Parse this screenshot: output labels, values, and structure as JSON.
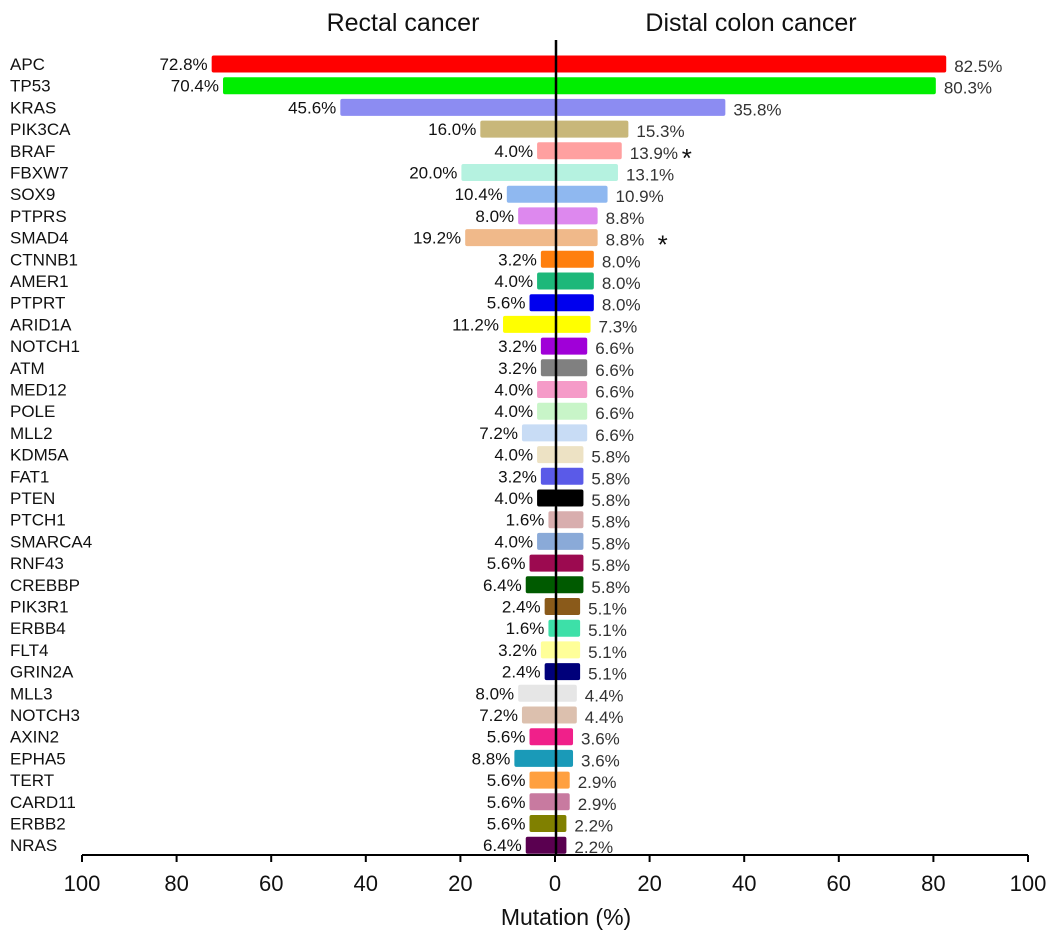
{
  "chart_data": {
    "type": "bar",
    "orientation": "horizontal-diverging",
    "left_title": "Rectal cancer",
    "right_title": "Distal colon cancer",
    "xlabel": "Mutation (%)",
    "xlim": [
      0,
      100
    ],
    "x_ticks": [
      "100",
      "80",
      "60",
      "40",
      "20",
      "0",
      "20",
      "40",
      "60",
      "80",
      "100"
    ],
    "genes": [
      {
        "name": "APC",
        "left": 72.8,
        "left_label": "72.8%",
        "right": 82.5,
        "right_label": "82.5%",
        "color": "#ff0000",
        "star": ""
      },
      {
        "name": "TP53",
        "left": 70.4,
        "left_label": "70.4%",
        "right": 80.3,
        "right_label": "80.3%",
        "color": "#00ee00",
        "star": ""
      },
      {
        "name": "KRAS",
        "left": 45.6,
        "left_label": "45.6%",
        "right": 35.8,
        "right_label": "35.8%",
        "color": "#8c8cf2",
        "star": ""
      },
      {
        "name": "PIK3CA",
        "left": 16.0,
        "left_label": "16.0%",
        "right": 15.3,
        "right_label": "15.3%",
        "color": "#c8b77a",
        "star": ""
      },
      {
        "name": "BRAF",
        "left": 4.0,
        "left_label": "4.0%",
        "right": 13.9,
        "right_label": "13.9%",
        "color": "#ffa0a0",
        "star": "*"
      },
      {
        "name": "FBXW7",
        "left": 20.0,
        "left_label": "20.0%",
        "right": 13.1,
        "right_label": "13.1%",
        "color": "#b5f2e0",
        "star": ""
      },
      {
        "name": "SOX9",
        "left": 10.4,
        "left_label": "10.4%",
        "right": 10.9,
        "right_label": "10.9%",
        "color": "#8fb8f0",
        "star": ""
      },
      {
        "name": "PTPRS",
        "left": 8.0,
        "left_label": "8.0%",
        "right": 8.8,
        "right_label": "8.8%",
        "color": "#dd88ee",
        "star": ""
      },
      {
        "name": "SMAD4",
        "left": 19.2,
        "left_label": "19.2%",
        "right": 8.8,
        "right_label": "8.8%",
        "color": "#f0b98a",
        "star": "*"
      },
      {
        "name": "CTNNB1",
        "left": 3.2,
        "left_label": "3.2%",
        "right": 8.0,
        "right_label": "8.0%",
        "color": "#ff7f0e",
        "star": ""
      },
      {
        "name": "AMER1",
        "left": 4.0,
        "left_label": "4.0%",
        "right": 8.0,
        "right_label": "8.0%",
        "color": "#1db87a",
        "star": ""
      },
      {
        "name": "PTPRT",
        "left": 5.6,
        "left_label": "5.6%",
        "right": 8.0,
        "right_label": "8.0%",
        "color": "#0000ee",
        "star": ""
      },
      {
        "name": "ARID1A",
        "left": 11.2,
        "left_label": "11.2%",
        "right": 7.3,
        "right_label": "7.3%",
        "color": "#ffff00",
        "star": ""
      },
      {
        "name": "NOTCH1",
        "left": 3.2,
        "left_label": "3.2%",
        "right": 6.6,
        "right_label": "6.6%",
        "color": "#a000d8",
        "star": ""
      },
      {
        "name": "ATM",
        "left": 3.2,
        "left_label": "3.2%",
        "right": 6.6,
        "right_label": "6.6%",
        "color": "#808080",
        "star": ""
      },
      {
        "name": "MED12",
        "left": 4.0,
        "left_label": "4.0%",
        "right": 6.6,
        "right_label": "6.6%",
        "color": "#f59bc8",
        "star": ""
      },
      {
        "name": "POLE",
        "left": 4.0,
        "left_label": "4.0%",
        "right": 6.6,
        "right_label": "6.6%",
        "color": "#c8f5c8",
        "star": ""
      },
      {
        "name": "MLL2",
        "left": 7.2,
        "left_label": "7.2%",
        "right": 6.6,
        "right_label": "6.6%",
        "color": "#c8dcf5",
        "star": ""
      },
      {
        "name": "KDM5A",
        "left": 4.0,
        "left_label": "4.0%",
        "right": 5.8,
        "right_label": "5.8%",
        "color": "#ede2c4",
        "star": ""
      },
      {
        "name": "FAT1",
        "left": 3.2,
        "left_label": "3.2%",
        "right": 5.8,
        "right_label": "5.8%",
        "color": "#5a5ae8",
        "star": ""
      },
      {
        "name": "PTEN",
        "left": 4.0,
        "left_label": "4.0%",
        "right": 5.8,
        "right_label": "5.8%",
        "color": "#000000",
        "star": ""
      },
      {
        "name": "PTCH1",
        "left": 1.6,
        "left_label": "1.6%",
        "right": 5.8,
        "right_label": "5.8%",
        "color": "#d8aeae",
        "star": ""
      },
      {
        "name": "SMARCA4",
        "left": 4.0,
        "left_label": "4.0%",
        "right": 5.8,
        "right_label": "5.8%",
        "color": "#8aaad8",
        "star": ""
      },
      {
        "name": "RNF43",
        "left": 5.6,
        "left_label": "5.6%",
        "right": 5.8,
        "right_label": "5.8%",
        "color": "#9c0a50",
        "star": ""
      },
      {
        "name": "CREBBP",
        "left": 6.4,
        "left_label": "6.4%",
        "right": 5.8,
        "right_label": "5.8%",
        "color": "#005a00",
        "star": ""
      },
      {
        "name": "PIK3R1",
        "left": 2.4,
        "left_label": "2.4%",
        "right": 5.1,
        "right_label": "5.1%",
        "color": "#8a5a1a",
        "star": ""
      },
      {
        "name": "ERBB4",
        "left": 1.6,
        "left_label": "1.6%",
        "right": 5.1,
        "right_label": "5.1%",
        "color": "#3de0a8",
        "star": ""
      },
      {
        "name": "FLT4",
        "left": 3.2,
        "left_label": "3.2%",
        "right": 5.1,
        "right_label": "5.1%",
        "color": "#ffff99",
        "star": ""
      },
      {
        "name": "GRIN2A",
        "left": 2.4,
        "left_label": "2.4%",
        "right": 5.1,
        "right_label": "5.1%",
        "color": "#00007a",
        "star": ""
      },
      {
        "name": "MLL3",
        "left": 8.0,
        "left_label": "8.0%",
        "right": 4.4,
        "right_label": "4.4%",
        "color": "#e6e6e6",
        "star": ""
      },
      {
        "name": "NOTCH3",
        "left": 7.2,
        "left_label": "7.2%",
        "right": 4.4,
        "right_label": "4.4%",
        "color": "#dcc0ae",
        "star": ""
      },
      {
        "name": "AXIN2",
        "left": 5.6,
        "left_label": "5.6%",
        "right": 3.6,
        "right_label": "3.6%",
        "color": "#f0208a",
        "star": ""
      },
      {
        "name": "EPHA5",
        "left": 8.8,
        "left_label": "8.8%",
        "right": 3.6,
        "right_label": "3.6%",
        "color": "#1a9ab8",
        "star": ""
      },
      {
        "name": "TERT",
        "left": 5.6,
        "left_label": "5.6%",
        "right": 2.9,
        "right_label": "2.9%",
        "color": "#ffa040",
        "star": ""
      },
      {
        "name": "CARD11",
        "left": 5.6,
        "left_label": "5.6%",
        "right": 2.9,
        "right_label": "2.9%",
        "color": "#c87aa0",
        "star": ""
      },
      {
        "name": "ERBB2",
        "left": 5.6,
        "left_label": "5.6%",
        "right": 2.2,
        "right_label": "2.2%",
        "color": "#808000",
        "star": ""
      },
      {
        "name": "NRAS",
        "left": 6.4,
        "left_label": "6.4%",
        "right": 2.2,
        "right_label": "2.2%",
        "color": "#5a0050",
        "star": ""
      }
    ]
  }
}
